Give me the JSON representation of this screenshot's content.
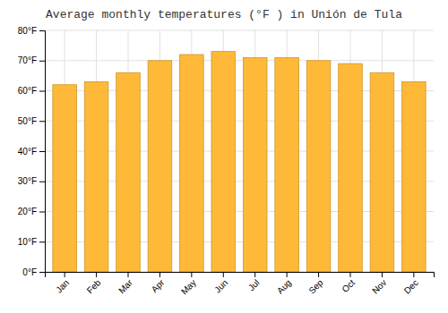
{
  "chart_data": {
    "type": "bar",
    "title": "Average monthly temperatures (°F ) in Unión de Tula",
    "categories": [
      "Jan",
      "Feb",
      "Mar",
      "Apr",
      "May",
      "Jun",
      "Jul",
      "Aug",
      "Sep",
      "Oct",
      "Nov",
      "Dec"
    ],
    "values": [
      62,
      63,
      66,
      70,
      72,
      73,
      71,
      71,
      70,
      69,
      66,
      63
    ],
    "color": "#FFB938",
    "ylim": [
      0,
      80
    ],
    "yticks": [
      {
        "value": 0,
        "label": "0°F"
      },
      {
        "value": 10,
        "label": "10°F"
      },
      {
        "value": 20,
        "label": "20°F"
      },
      {
        "value": 30,
        "label": "30°F"
      },
      {
        "value": 40,
        "label": "40°F"
      },
      {
        "value": 50,
        "label": "50°F"
      },
      {
        "value": 60,
        "label": "60°F"
      },
      {
        "value": 70,
        "label": "70°F"
      },
      {
        "value": 80,
        "label": "80°F"
      }
    ],
    "grid": true
  }
}
